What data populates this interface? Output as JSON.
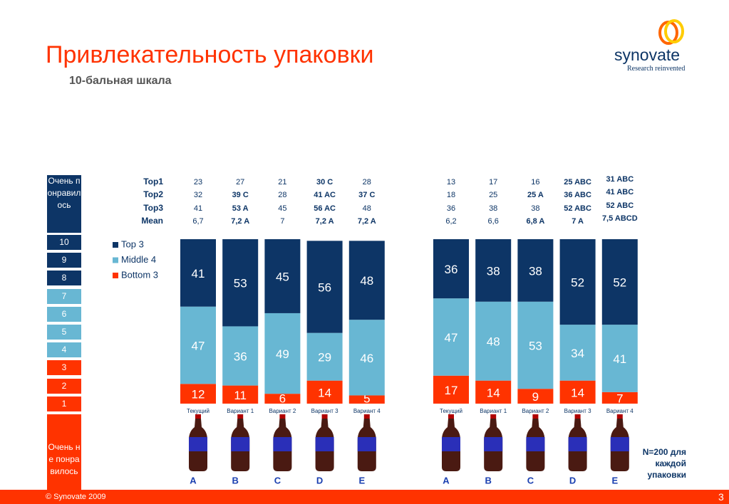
{
  "header": {
    "title": "Привлекательность упаковки",
    "subtitle": "10-бальная шкала"
  },
  "logo": {
    "name": "synovate",
    "tagline": "Research reinvented"
  },
  "scale": {
    "top": "Очень понравилось",
    "levels": [
      "10",
      "9",
      "8",
      "7",
      "6",
      "5",
      "4",
      "3",
      "2",
      "1"
    ],
    "bottom": "Очень не понравилось"
  },
  "table": {
    "row_labels": [
      "Top1",
      "Top2",
      "Top3",
      "Mean"
    ],
    "groups": [
      {
        "rows": [
          [
            "23",
            "27",
            "21",
            "30 C",
            "28"
          ],
          [
            "32",
            "39 C",
            "28",
            "41 AC",
            "37 C"
          ],
          [
            "41",
            "53 A",
            "45",
            "56 AC",
            "48"
          ],
          [
            "6,7",
            "7,2 A",
            "7",
            "7,2 A",
            "7,2 A"
          ]
        ]
      },
      {
        "rows": [
          [
            "13",
            "17",
            "16",
            "25 ABC",
            "31 ABC"
          ],
          [
            "18",
            "25",
            "25 A",
            "36 ABC",
            "41 ABC"
          ],
          [
            "36",
            "38",
            "38",
            "52 ABC",
            "52 ABC"
          ],
          [
            "6,2",
            "6,6",
            "6,8 A",
            "7 A",
            "7,5 ABCD"
          ]
        ]
      }
    ]
  },
  "chart_data": [
    {
      "type": "bar",
      "stacked": true,
      "ylim": [
        0,
        100
      ],
      "categories": [
        "Текущий",
        "Вариант 1",
        "Вариант 2",
        "Вариант 3",
        "Вариант 4"
      ],
      "letters": [
        "A",
        "B",
        "C",
        "D",
        "E"
      ],
      "series": [
        {
          "name": "Bottom 3",
          "color": "#ff3300",
          "values": [
            12,
            11,
            6,
            14,
            5
          ]
        },
        {
          "name": "Middle 4",
          "color": "#68b7d3",
          "values": [
            47,
            36,
            49,
            29,
            46
          ]
        },
        {
          "name": "Top 3",
          "color": "#0d3566",
          "values": [
            41,
            53,
            45,
            56,
            48
          ]
        }
      ]
    },
    {
      "type": "bar",
      "stacked": true,
      "ylim": [
        0,
        100
      ],
      "categories": [
        "Текущий",
        "Вариант 1",
        "Вариант 2",
        "Вариант 3",
        "Вариант 4"
      ],
      "letters": [
        "A",
        "B",
        "C",
        "D",
        "E"
      ],
      "series": [
        {
          "name": "Bottom 3",
          "color": "#ff3300",
          "values": [
            17,
            14,
            9,
            14,
            7
          ]
        },
        {
          "name": "Middle 4",
          "color": "#68b7d3",
          "values": [
            47,
            48,
            53,
            34,
            41
          ]
        },
        {
          "name": "Top 3",
          "color": "#0d3566",
          "values": [
            36,
            38,
            38,
            52,
            52
          ]
        }
      ]
    }
  ],
  "note": "N=200 для каждой упаковки",
  "footer": {
    "copyright": "© Synovate 2009",
    "page": "3"
  }
}
